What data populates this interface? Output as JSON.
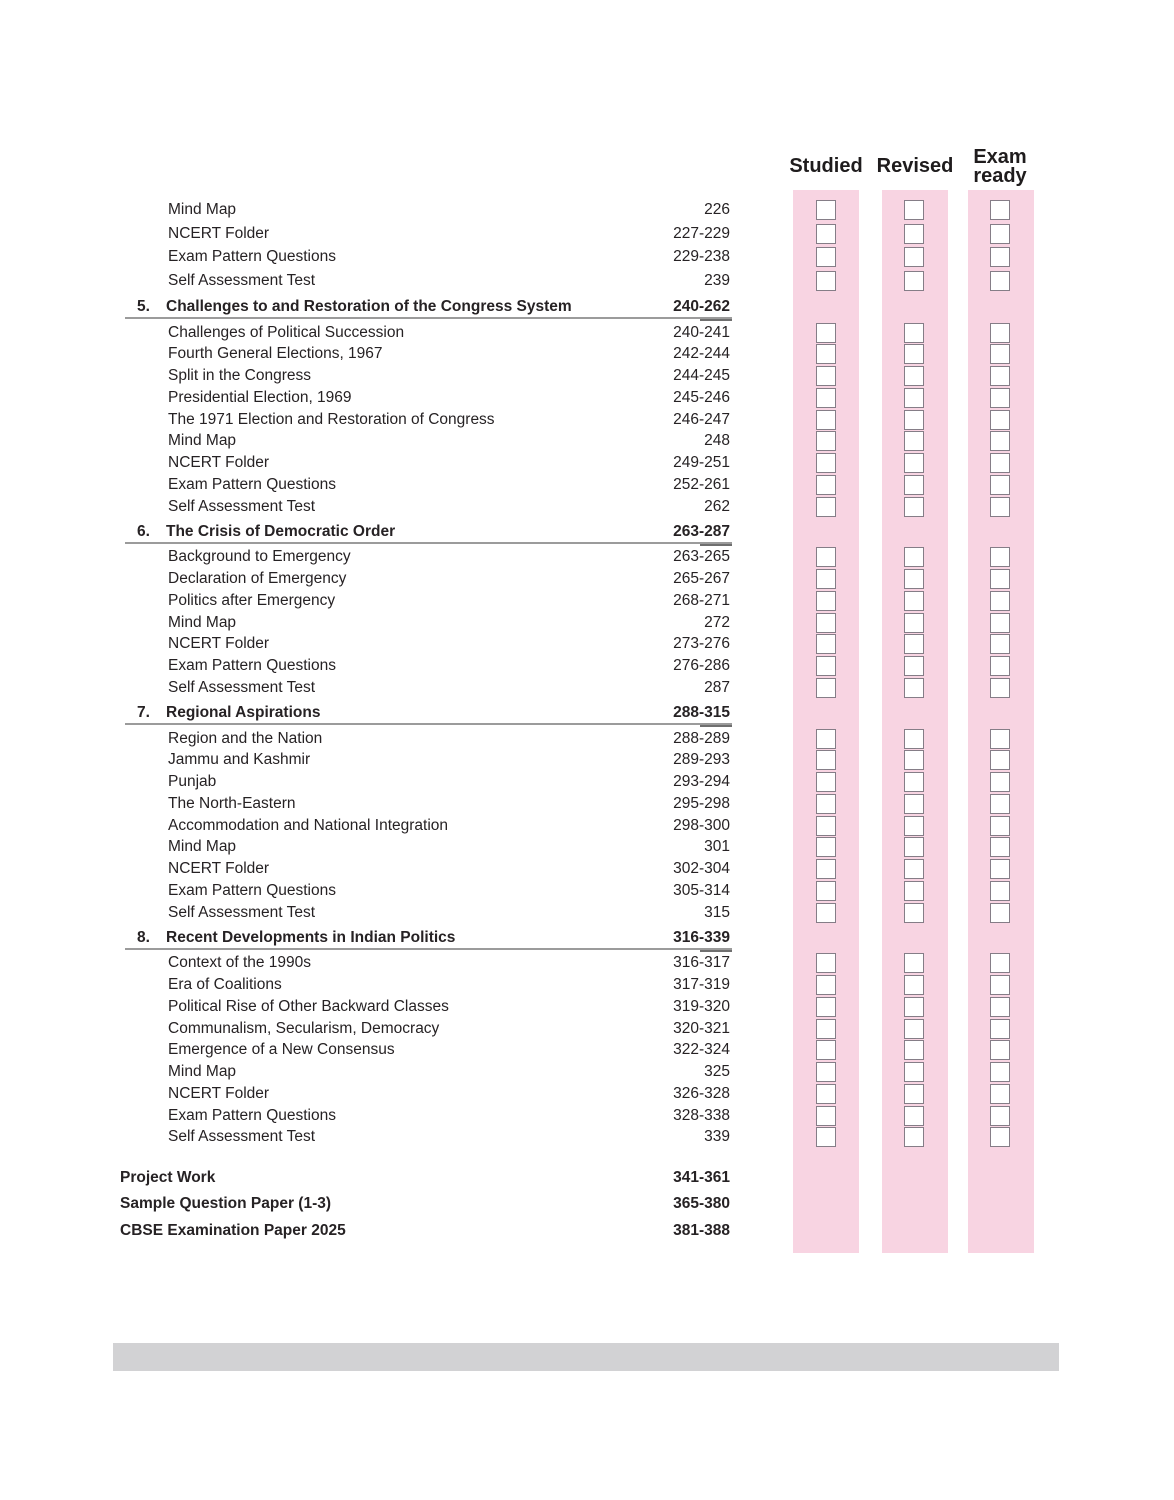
{
  "tracker": {
    "columns": [
      {
        "label": "Studied"
      },
      {
        "label": "Revised"
      },
      {
        "label": "Exam ready"
      }
    ]
  },
  "toc": {
    "leading_items": [
      {
        "label": "Mind Map",
        "pages": "226"
      },
      {
        "label": "NCERT Folder",
        "pages": "227-229"
      },
      {
        "label": "Exam Pattern Questions",
        "pages": "229-238"
      },
      {
        "label": "Self Assessment Test",
        "pages": "239"
      }
    ],
    "chapters": [
      {
        "number": "5.",
        "title": "Challenges to and Restoration of the Congress System",
        "pages": "240-262",
        "items": [
          {
            "label": "Challenges of Political Succession",
            "pages": "240-241"
          },
          {
            "label": "Fourth General Elections, 1967",
            "pages": "242-244"
          },
          {
            "label": "Split in the Congress",
            "pages": "244-245"
          },
          {
            "label": "Presidential Election, 1969",
            "pages": "245-246"
          },
          {
            "label": "The 1971 Election and Restoration of Congress",
            "pages": "246-247"
          },
          {
            "label": "Mind Map",
            "pages": "248"
          },
          {
            "label": "NCERT Folder",
            "pages": "249-251"
          },
          {
            "label": "Exam Pattern Questions",
            "pages": "252-261"
          },
          {
            "label": "Self Assessment Test",
            "pages": "262"
          }
        ]
      },
      {
        "number": "6.",
        "title": "The Crisis of Democratic Order",
        "pages": "263-287",
        "items": [
          {
            "label": "Background to Emergency",
            "pages": "263-265"
          },
          {
            "label": "Declaration of Emergency",
            "pages": "265-267"
          },
          {
            "label": "Politics after Emergency",
            "pages": "268-271"
          },
          {
            "label": "Mind Map",
            "pages": "272"
          },
          {
            "label": "NCERT Folder",
            "pages": "273-276"
          },
          {
            "label": "Exam Pattern Questions",
            "pages": "276-286"
          },
          {
            "label": "Self Assessment Test",
            "pages": "287"
          }
        ]
      },
      {
        "number": "7.",
        "title": "Regional Aspirations",
        "pages": "288-315",
        "items": [
          {
            "label": "Region and the Nation",
            "pages": "288-289"
          },
          {
            "label": "Jammu and Kashmir",
            "pages": "289-293"
          },
          {
            "label": "Punjab",
            "pages": "293-294"
          },
          {
            "label": "The North-Eastern",
            "pages": "295-298"
          },
          {
            "label": "Accommodation and National Integration",
            "pages": "298-300"
          },
          {
            "label": "Mind Map",
            "pages": "301"
          },
          {
            "label": "NCERT Folder",
            "pages": "302-304"
          },
          {
            "label": "Exam Pattern Questions",
            "pages": "305-314"
          },
          {
            "label": "Self Assessment Test",
            "pages": "315"
          }
        ]
      },
      {
        "number": "8.",
        "title": "Recent Developments in Indian Politics",
        "pages": "316-339",
        "items": [
          {
            "label": "Context of the 1990s",
            "pages": "316-317"
          },
          {
            "label": "Era of Coalitions",
            "pages": "317-319"
          },
          {
            "label": "Political Rise of Other Backward Classes",
            "pages": "319-320"
          },
          {
            "label": "Communalism, Secularism, Democracy",
            "pages": "320-321"
          },
          {
            "label": "Emergence of a New Consensus",
            "pages": "322-324"
          },
          {
            "label": "Mind Map",
            "pages": "325"
          },
          {
            "label": "NCERT Folder",
            "pages": "326-328"
          },
          {
            "label": "Exam Pattern Questions",
            "pages": "328-338"
          },
          {
            "label": "Self Assessment Test",
            "pages": "339"
          }
        ]
      }
    ],
    "back_matter": [
      {
        "label": "Project Work",
        "pages": "341-361"
      },
      {
        "label": "Sample Question Paper (1-3)",
        "pages": "365-380"
      },
      {
        "label": "CBSE Examination Paper 2025",
        "pages": "381-388"
      }
    ]
  },
  "colors": {
    "strip_pink": "#f8d4e2",
    "checkbox_border": "#857d87",
    "text": "#262224",
    "rule_gray": "#9b9b9b",
    "rule_dark_gray": "#6f6f6f",
    "footer_bar_gray": "#d2d2d4"
  }
}
